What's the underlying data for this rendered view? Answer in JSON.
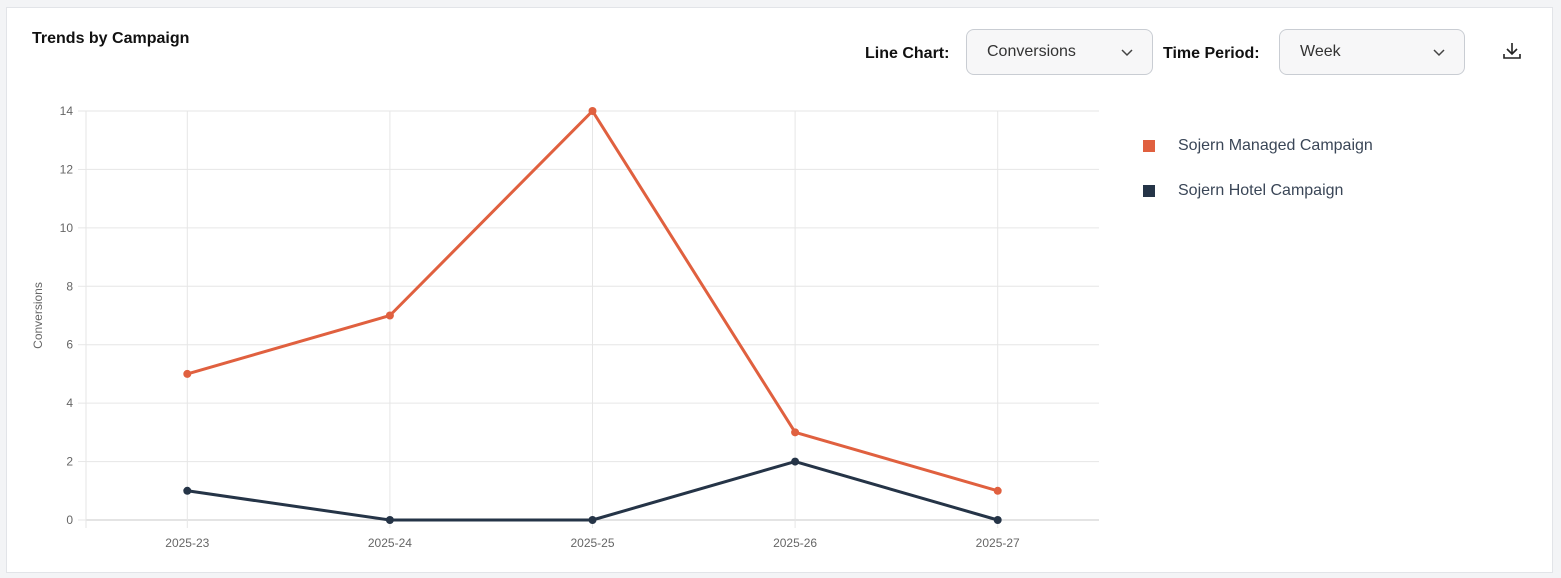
{
  "card": {
    "title": "Trends by Campaign"
  },
  "controls": {
    "line_chart_label": "Line Chart:",
    "line_chart_value": "Conversions",
    "time_period_label": "Time Period:",
    "time_period_value": "Week"
  },
  "icons": {
    "download": "download-icon",
    "dropdown": "chevron-down-icon"
  },
  "chart_data": {
    "type": "line",
    "title": "",
    "xlabel": "",
    "ylabel": "Conversions",
    "categories": [
      "2025-23",
      "2025-24",
      "2025-25",
      "2025-26",
      "2025-27"
    ],
    "ylim": [
      0,
      14
    ],
    "yticks": [
      0,
      2,
      4,
      6,
      8,
      10,
      12,
      14
    ],
    "grid": true,
    "legend_position": "right",
    "series": [
      {
        "name": "Sojern Managed Campaign",
        "color": "#e0603f",
        "values": [
          5,
          7,
          14,
          3,
          1
        ]
      },
      {
        "name": "Sojern Hotel Campaign",
        "color": "#253447",
        "values": [
          1,
          0,
          0,
          2,
          0
        ]
      }
    ]
  }
}
